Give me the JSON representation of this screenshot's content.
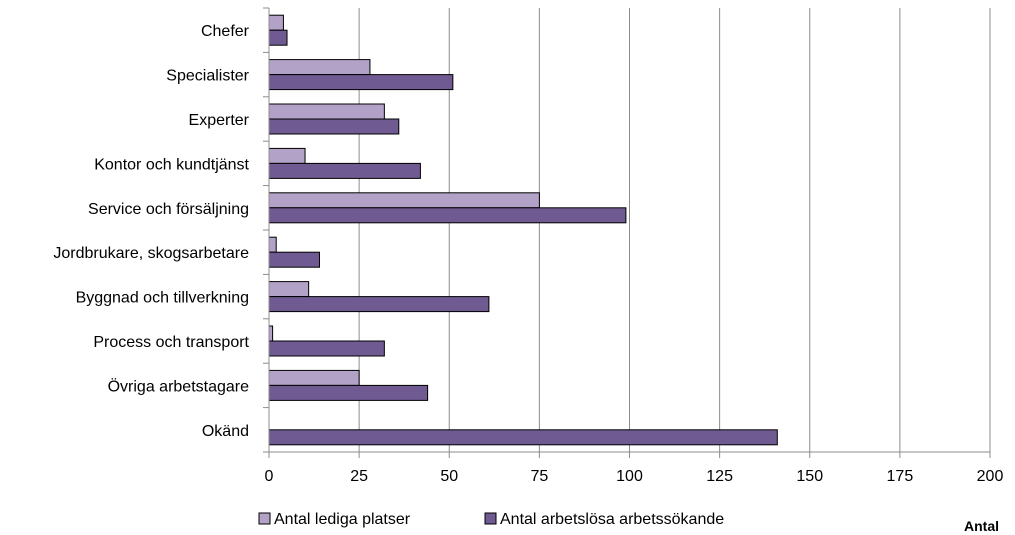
{
  "chart_data": {
    "type": "bar",
    "orientation": "horizontal",
    "categories": [
      "Chefer",
      "Specialister",
      "Experter",
      "Kontor och kundtjänst",
      "Service och försäljning",
      "Jordbrukare, skogsarbetare",
      "Byggnad och tillverkning",
      "Process och transport",
      "Övriga arbetstagare",
      "Okänd"
    ],
    "series": [
      {
        "name": "Antal lediga platser",
        "color": "#b3a2c7",
        "values": [
          4,
          28,
          32,
          10,
          75,
          2,
          11,
          1,
          25,
          0
        ]
      },
      {
        "name": "Antal arbetslösa arbetssökande",
        "color": "#6f5a91",
        "values": [
          5,
          51,
          36,
          42,
          99,
          14,
          61,
          32,
          44,
          141
        ]
      }
    ],
    "xlim": [
      0,
      200
    ],
    "xticks": [
      "0",
      "25",
      "50",
      "75",
      "100",
      "125",
      "150",
      "175",
      "200"
    ],
    "x_axis_title": "Antal",
    "grid": "vertical",
    "legend_position": "bottom"
  }
}
